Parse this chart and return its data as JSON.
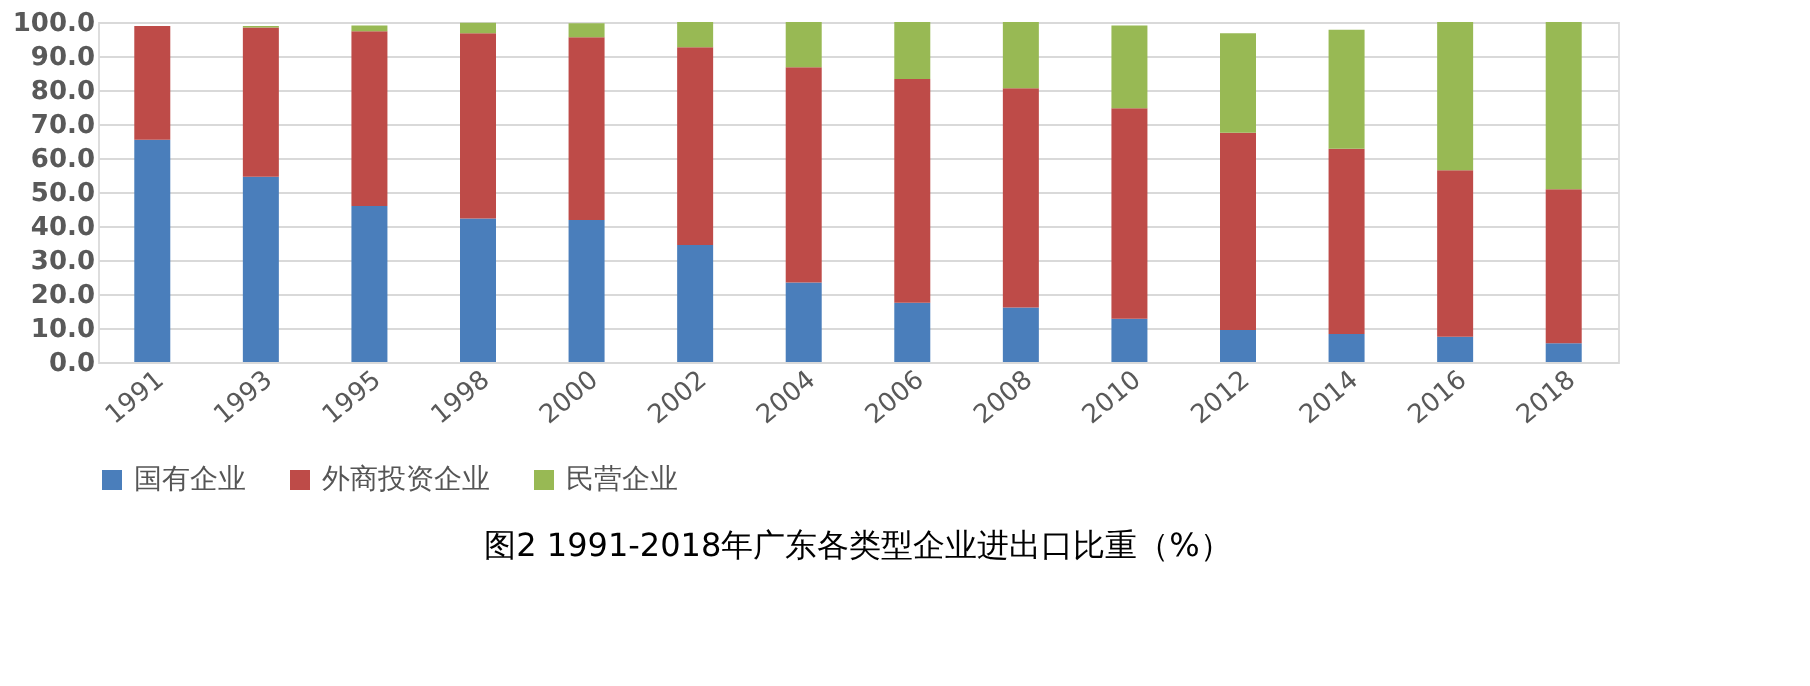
{
  "chart_data": {
    "type": "bar",
    "stacked": true,
    "title": "图2  1991-2018年广东各类型企业进出口比重（%）",
    "categories": [
      "1991",
      "1993",
      "1995",
      "1998",
      "2000",
      "2002",
      "2004",
      "2006",
      "2008",
      "2010",
      "2012",
      "2014",
      "2016",
      "2018"
    ],
    "series": [
      {
        "name": "国有企业",
        "color": "#4a7ebb",
        "values": [
          65.4,
          54.5,
          45.9,
          42.2,
          41.8,
          34.4,
          23.4,
          17.4,
          16.0,
          12.7,
          9.4,
          8.2,
          7.4,
          5.5
        ]
      },
      {
        "name": "外商投资企业",
        "color": "#be4b48",
        "values": [
          33.4,
          43.9,
          51.4,
          54.5,
          53.7,
          58.2,
          63.3,
          65.8,
          64.5,
          61.9,
          58.0,
          54.5,
          49.0,
          45.3
        ]
      },
      {
        "name": "民营企业",
        "color": "#98b954",
        "values": [
          0,
          0.4,
          1.7,
          3.1,
          4.1,
          7.4,
          13.3,
          16.8,
          19.5,
          24.4,
          29.3,
          35.0,
          43.6,
          49.2
        ]
      }
    ],
    "ylim": [
      0,
      100
    ],
    "yticks": [
      {
        "value": 0,
        "label": "0.0"
      },
      {
        "value": 10,
        "label": "10.0"
      },
      {
        "value": 20,
        "label": "20.0"
      },
      {
        "value": 30,
        "label": "30.0"
      },
      {
        "value": 40,
        "label": "40.0"
      },
      {
        "value": 50,
        "label": "50.0"
      },
      {
        "value": 60,
        "label": "60.0"
      },
      {
        "value": 70,
        "label": "70.0"
      },
      {
        "value": 80,
        "label": "80.0"
      },
      {
        "value": 90,
        "label": "90.0"
      },
      {
        "value": 100,
        "label": "100.0"
      }
    ],
    "grid": "y",
    "legend": "bottom"
  }
}
